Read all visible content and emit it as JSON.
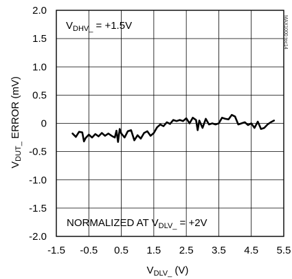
{
  "chart_data": {
    "type": "line",
    "title": "",
    "xlabel": {
      "main": "V",
      "sub": "DLV_",
      "unit": " (V)"
    },
    "ylabel": {
      "main": "V",
      "sub": "DUT_",
      "rest": " ERROR (mV)"
    },
    "xlim": [
      -1.5,
      5.5
    ],
    "ylim": [
      -2.0,
      2.0
    ],
    "xticks": [
      "-1.5",
      "-0.5",
      "0.5",
      "1.5",
      "2.5",
      "3.5",
      "4.5",
      "5.5"
    ],
    "xtick_values": [
      -1.5,
      -0.5,
      0.5,
      1.5,
      2.5,
      3.5,
      4.5,
      5.5
    ],
    "yticks": [
      "2.0",
      "1.5",
      "1.0",
      "0.5",
      "0",
      "-0.5",
      "-1.0",
      "-1.5",
      "-2.0"
    ],
    "ytick_values": [
      2.0,
      1.5,
      1.0,
      0.5,
      0,
      -0.5,
      -1.0,
      -1.5,
      -2.0
    ],
    "xgrid": [
      -1.5,
      -0.5,
      0.5,
      1.5,
      2.5,
      3.5,
      4.5,
      5.5
    ],
    "ygrid": [
      2.0,
      1.5,
      1.0,
      0.5,
      0,
      -0.5,
      -1.0,
      -1.5,
      -2.0
    ],
    "grid": true,
    "line_color": "#000000",
    "annotations": {
      "top_left": {
        "main": "V",
        "sub": "DHV_",
        "rest": " = +1.5V"
      },
      "bottom_left": {
        "pre": "NORMALIZED AT V",
        "sub": "DLV_",
        "rest": " = +2V"
      },
      "side_code": "MAX1000 toc14"
    },
    "series": [
      {
        "x": [
          -1.0,
          -0.9,
          -0.8,
          -0.7,
          -0.65,
          -0.6,
          -0.5,
          -0.4,
          -0.3,
          -0.2,
          -0.1,
          0.0,
          0.1,
          0.2,
          0.3,
          0.35,
          0.4,
          0.45,
          0.5,
          0.6,
          0.7,
          0.8,
          0.9,
          1.0,
          1.1,
          1.2,
          1.3,
          1.4,
          1.5,
          1.6,
          1.7,
          1.8,
          1.9,
          2.0,
          2.1,
          2.2,
          2.3,
          2.4,
          2.5,
          2.6,
          2.7,
          2.8,
          2.85,
          2.9,
          3.0,
          3.1,
          3.2,
          3.3,
          3.4,
          3.5,
          3.6,
          3.7,
          3.8,
          3.9,
          4.0,
          4.1,
          4.2,
          4.3,
          4.4,
          4.5,
          4.6,
          4.7,
          4.8,
          4.9,
          5.0,
          5.1,
          5.2
        ],
        "y": [
          -0.18,
          -0.24,
          -0.15,
          -0.16,
          -0.32,
          -0.26,
          -0.2,
          -0.25,
          -0.19,
          -0.23,
          -0.17,
          -0.22,
          -0.18,
          -0.22,
          -0.25,
          -0.13,
          -0.33,
          -0.1,
          -0.18,
          -0.25,
          -0.14,
          -0.12,
          -0.3,
          -0.21,
          -0.27,
          -0.17,
          -0.14,
          -0.22,
          -0.17,
          -0.07,
          -0.02,
          -0.05,
          0.02,
          -0.01,
          0.06,
          0.04,
          0.06,
          0.04,
          0.09,
          0.0,
          0.1,
          0.06,
          -0.12,
          0.05,
          -0.08,
          0.08,
          -0.02,
          0.0,
          -0.02,
          0.0,
          0.1,
          0.08,
          0.07,
          0.15,
          0.12,
          -0.02,
          0.0,
          0.02,
          -0.03,
          0.0,
          -0.08,
          0.03,
          -0.1,
          -0.08,
          -0.02,
          0.02,
          0.05
        ]
      }
    ]
  }
}
